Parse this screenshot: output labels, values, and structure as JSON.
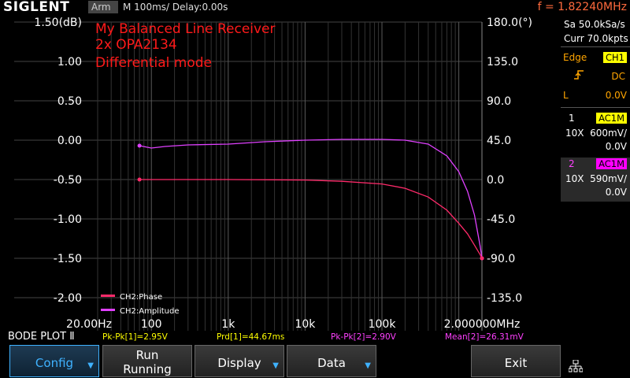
{
  "topbar": {
    "brand": "SIGLENT",
    "trigger_status": "Arm",
    "timebase": "M 100ms/  Delay:0.00s",
    "frequency": "f = 1.82240MHz"
  },
  "bode": {
    "annotation_lines": [
      "My Balanced Line Receiver",
      "2x OPA2134",
      "Differential mode"
    ],
    "left_axis_ticks": [
      "1.50(dB)",
      "1.00",
      "0.50",
      "0.00",
      "-0.50",
      "-1.00",
      "-1.50",
      "-2.00"
    ],
    "right_axis_ticks": [
      "180.0(°)",
      "135.0",
      "90.0",
      "45.0",
      "0.0",
      "-45.0",
      "-90.0",
      "-135.0"
    ],
    "x_axis_ticks": [
      "20.00Hz",
      "100",
      "1k",
      "10k",
      "100k",
      "2.000000MHz"
    ],
    "legend": [
      {
        "label": "CH2:Phase",
        "color": "#ff2a6a"
      },
      {
        "label": "CH2:Amplitude",
        "color": "#e040ff"
      }
    ],
    "mode_label": "BODE PLOT Ⅱ"
  },
  "right_panel": {
    "sample_rate": "Sa 50.0kSa/s",
    "memory": "Curr 70.0kpts",
    "trigger_type": "Edge",
    "trigger_source": "CH1",
    "trigger_coupling": "DC",
    "trigger_level_label": "L",
    "trigger_level": "0.0V",
    "ch1": {
      "num": "1",
      "coupling": "AC1M",
      "probe": "10X",
      "scale": "600mV/",
      "offset": "0.0V",
      "color": "#ffff00"
    },
    "ch2": {
      "num": "2",
      "coupling": "AC1M",
      "probe": "10X",
      "scale": "590mV/",
      "offset": "0.0V",
      "color": "#ff00ff"
    }
  },
  "status_bar": {
    "pkpk1": "Pk-Pk[1]=2.95V",
    "prd1": "Prd[1]=44.67ms",
    "pkpk2": "Pk-Pk[2]=2.90V",
    "mean2": "Mean[2]=26.31mV"
  },
  "softkeys": {
    "config": "Config",
    "run_line1": "Run",
    "run_line2": "Running",
    "display": "Display",
    "data": "Data",
    "exit": "Exit"
  },
  "chart_data": {
    "type": "line",
    "x_scale": "log",
    "xlim_hz": [
      20,
      2000000
    ],
    "ylim_left_db": [
      -2.5,
      1.5
    ],
    "ylim_right_deg": [
      -180,
      180
    ],
    "series": [
      {
        "name": "CH2:Amplitude",
        "axis": "left",
        "color": "#e040ff",
        "x": [
          70,
          100,
          150,
          300,
          1000,
          3000,
          10000,
          30000,
          100000,
          200000,
          400000,
          700000,
          1000000,
          1300000,
          1600000,
          1900000,
          2000000
        ],
        "y": [
          -0.07,
          -0.1,
          -0.08,
          -0.06,
          -0.05,
          -0.02,
          0.0,
          0.01,
          0.01,
          0.0,
          -0.05,
          -0.2,
          -0.4,
          -0.65,
          -0.95,
          -1.35,
          -1.5
        ]
      },
      {
        "name": "CH2:Phase",
        "axis": "right",
        "color": "#ff2a6a",
        "x": [
          70,
          100,
          1000,
          10000,
          30000,
          100000,
          200000,
          400000,
          700000,
          1000000,
          1300000,
          1600000,
          1900000,
          2000000
        ],
        "y": [
          0,
          0,
          0,
          -0.5,
          -2,
          -5,
          -10,
          -20,
          -35,
          -50,
          -62,
          -75,
          -86,
          -90
        ]
      }
    ]
  }
}
